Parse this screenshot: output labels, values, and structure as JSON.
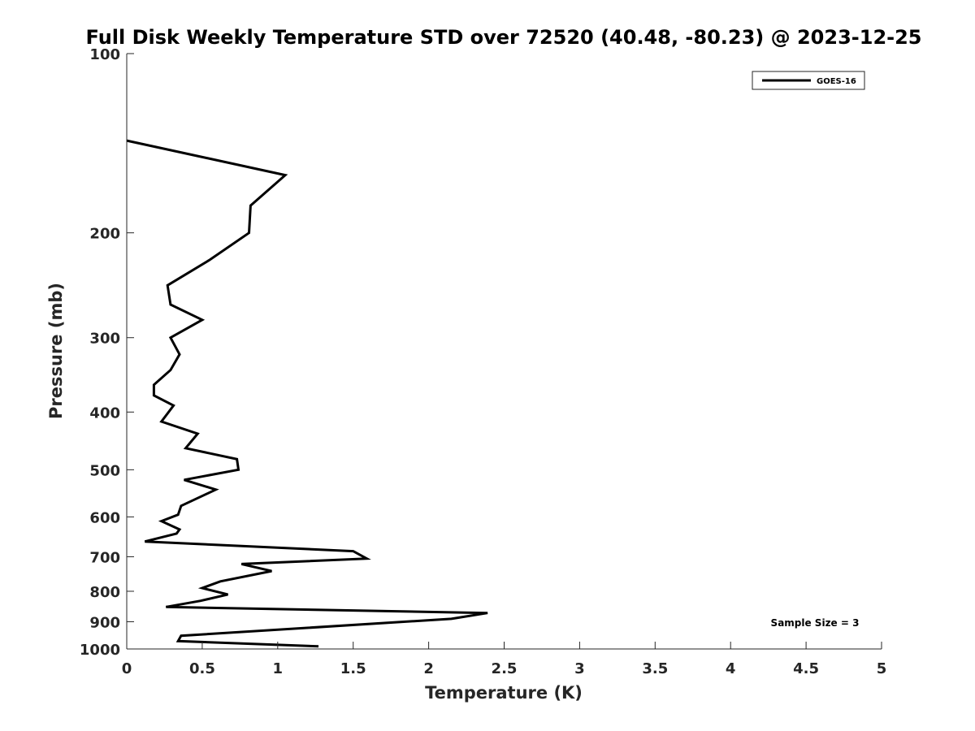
{
  "chart_data": {
    "type": "line",
    "title": "Full Disk Weekly Temperature STD over 72520 (40.48, -80.23) @ 2023-12-25",
    "xlabel": "Temperature (K)",
    "ylabel": "Pressure (mb)",
    "xlim": [
      0,
      5
    ],
    "ylim": [
      100,
      1000
    ],
    "y_scale": "log",
    "y_reversed": true,
    "grid": false,
    "legend_position": "top-right",
    "x_ticks": [
      "0",
      "0.5",
      "1",
      "1.5",
      "2",
      "2.5",
      "3",
      "3.5",
      "4",
      "4.5",
      "5"
    ],
    "y_ticks": [
      "100",
      "200",
      "300",
      "400",
      "500",
      "600",
      "700",
      "800",
      "900",
      "1000"
    ],
    "annotation": "Sample Size = 3",
    "series": [
      {
        "name": "GOES-16",
        "color": "#000000",
        "points": [
          [
            0.0,
            140
          ],
          [
            1.05,
            160
          ],
          [
            0.82,
            180
          ],
          [
            0.81,
            200
          ],
          [
            0.55,
            222
          ],
          [
            0.27,
            245
          ],
          [
            0.29,
            264
          ],
          [
            0.5,
            280
          ],
          [
            0.29,
            300
          ],
          [
            0.35,
            320
          ],
          [
            0.29,
            340
          ],
          [
            0.18,
            360
          ],
          [
            0.18,
            375
          ],
          [
            0.31,
            390
          ],
          [
            0.23,
            415
          ],
          [
            0.47,
            435
          ],
          [
            0.39,
            460
          ],
          [
            0.73,
            480
          ],
          [
            0.74,
            500
          ],
          [
            0.38,
            520
          ],
          [
            0.59,
            540
          ],
          [
            0.36,
            575
          ],
          [
            0.34,
            595
          ],
          [
            0.23,
            610
          ],
          [
            0.35,
            630
          ],
          [
            0.33,
            640
          ],
          [
            0.12,
            660
          ],
          [
            1.5,
            685
          ],
          [
            1.59,
            705
          ],
          [
            0.76,
            720
          ],
          [
            0.96,
            740
          ],
          [
            0.62,
            770
          ],
          [
            0.5,
            790
          ],
          [
            0.67,
            810
          ],
          [
            0.49,
            830
          ],
          [
            0.26,
            850
          ],
          [
            2.39,
            870
          ],
          [
            2.15,
            890
          ],
          [
            0.36,
            950
          ],
          [
            0.34,
            970
          ],
          [
            1.27,
            990
          ]
        ]
      }
    ]
  }
}
